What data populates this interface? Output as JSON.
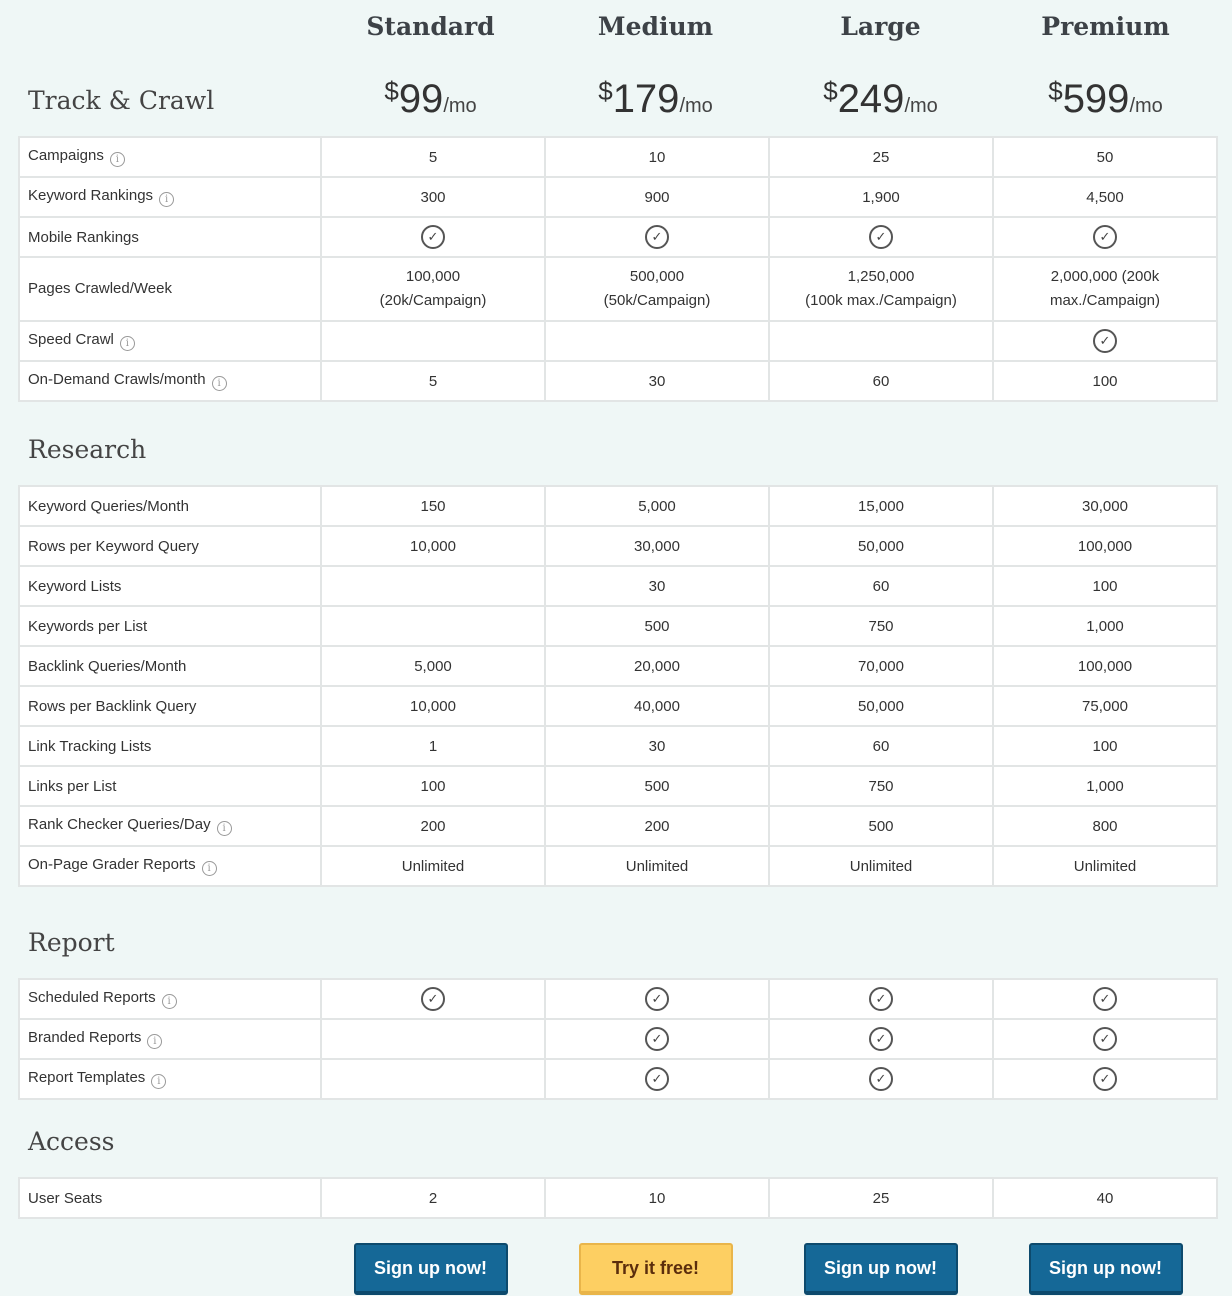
{
  "plans": [
    {
      "name": "Standard",
      "currency": "$",
      "price": "99",
      "period": "/mo",
      "button": "Sign up now!",
      "button_style": "blue"
    },
    {
      "name": "Medium",
      "currency": "$",
      "price": "179",
      "period": "/mo",
      "button": "Try it free!",
      "button_style": "yellow"
    },
    {
      "name": "Large",
      "currency": "$",
      "price": "249",
      "period": "/mo",
      "button": "Sign up now!",
      "button_style": "blue"
    },
    {
      "name": "Premium",
      "currency": "$",
      "price": "599",
      "period": "/mo",
      "button": "Sign up now!",
      "button_style": "blue"
    }
  ],
  "colors": {
    "button_primary": "#156897",
    "button_trial": "#fdcf62",
    "background": "#eff7f6"
  },
  "sections": [
    {
      "title": "Track & Crawl",
      "rows": [
        {
          "label": "Campaigns",
          "info": true,
          "values": [
            "5",
            "10",
            "25",
            "50"
          ]
        },
        {
          "label": "Keyword Rankings",
          "info": true,
          "values": [
            "300",
            "900",
            "1,900",
            "4,500"
          ]
        },
        {
          "label": "Mobile Rankings",
          "info": false,
          "values": [
            true,
            true,
            true,
            true
          ]
        },
        {
          "label": "Pages Crawled/Week",
          "info": false,
          "tall": true,
          "values": [
            "100,000\n(20k/Campaign)",
            "500,000\n(50k/Campaign)",
            "1,250,000\n(100k max./Campaign)",
            "2,000,000 (200k\nmax./Campaign)"
          ]
        },
        {
          "label": "Speed Crawl",
          "info": true,
          "values": [
            null,
            null,
            null,
            true
          ]
        },
        {
          "label": "On-Demand Crawls/month",
          "info": true,
          "values": [
            "5",
            "30",
            "60",
            "100"
          ]
        }
      ]
    },
    {
      "title": "Research",
      "rows": [
        {
          "label": "Keyword Queries/Month",
          "info": false,
          "values": [
            "150",
            "5,000",
            "15,000",
            "30,000"
          ]
        },
        {
          "label": "Rows per Keyword Query",
          "info": false,
          "values": [
            "10,000",
            "30,000",
            "50,000",
            "100,000"
          ]
        },
        {
          "label": "Keyword Lists",
          "info": false,
          "values": [
            null,
            "30",
            "60",
            "100"
          ]
        },
        {
          "label": "Keywords per List",
          "info": false,
          "values": [
            null,
            "500",
            "750",
            "1,000"
          ]
        },
        {
          "label": "Backlink Queries/Month",
          "info": false,
          "values": [
            "5,000",
            "20,000",
            "70,000",
            "100,000"
          ]
        },
        {
          "label": "Rows per Backlink Query",
          "info": false,
          "values": [
            "10,000",
            "40,000",
            "50,000",
            "75,000"
          ]
        },
        {
          "label": "Link Tracking Lists",
          "info": false,
          "values": [
            "1",
            "30",
            "60",
            "100"
          ]
        },
        {
          "label": "Links per List",
          "info": false,
          "values": [
            "100",
            "500",
            "750",
            "1,000"
          ]
        },
        {
          "label": "Rank Checker Queries/Day",
          "info": true,
          "values": [
            "200",
            "200",
            "500",
            "800"
          ]
        },
        {
          "label": "On-Page Grader Reports",
          "info": true,
          "values": [
            "Unlimited",
            "Unlimited",
            "Unlimited",
            "Unlimited"
          ]
        }
      ]
    },
    {
      "title": "Report",
      "rows": [
        {
          "label": "Scheduled Reports",
          "info": true,
          "values": [
            true,
            true,
            true,
            true
          ]
        },
        {
          "label": "Branded Reports",
          "info": true,
          "values": [
            null,
            true,
            true,
            true
          ]
        },
        {
          "label": "Report Templates",
          "info": true,
          "values": [
            null,
            true,
            true,
            true
          ]
        }
      ]
    },
    {
      "title": "Access",
      "rows": [
        {
          "label": "User Seats",
          "info": false,
          "values": [
            "2",
            "10",
            "25",
            "40"
          ]
        }
      ]
    }
  ]
}
